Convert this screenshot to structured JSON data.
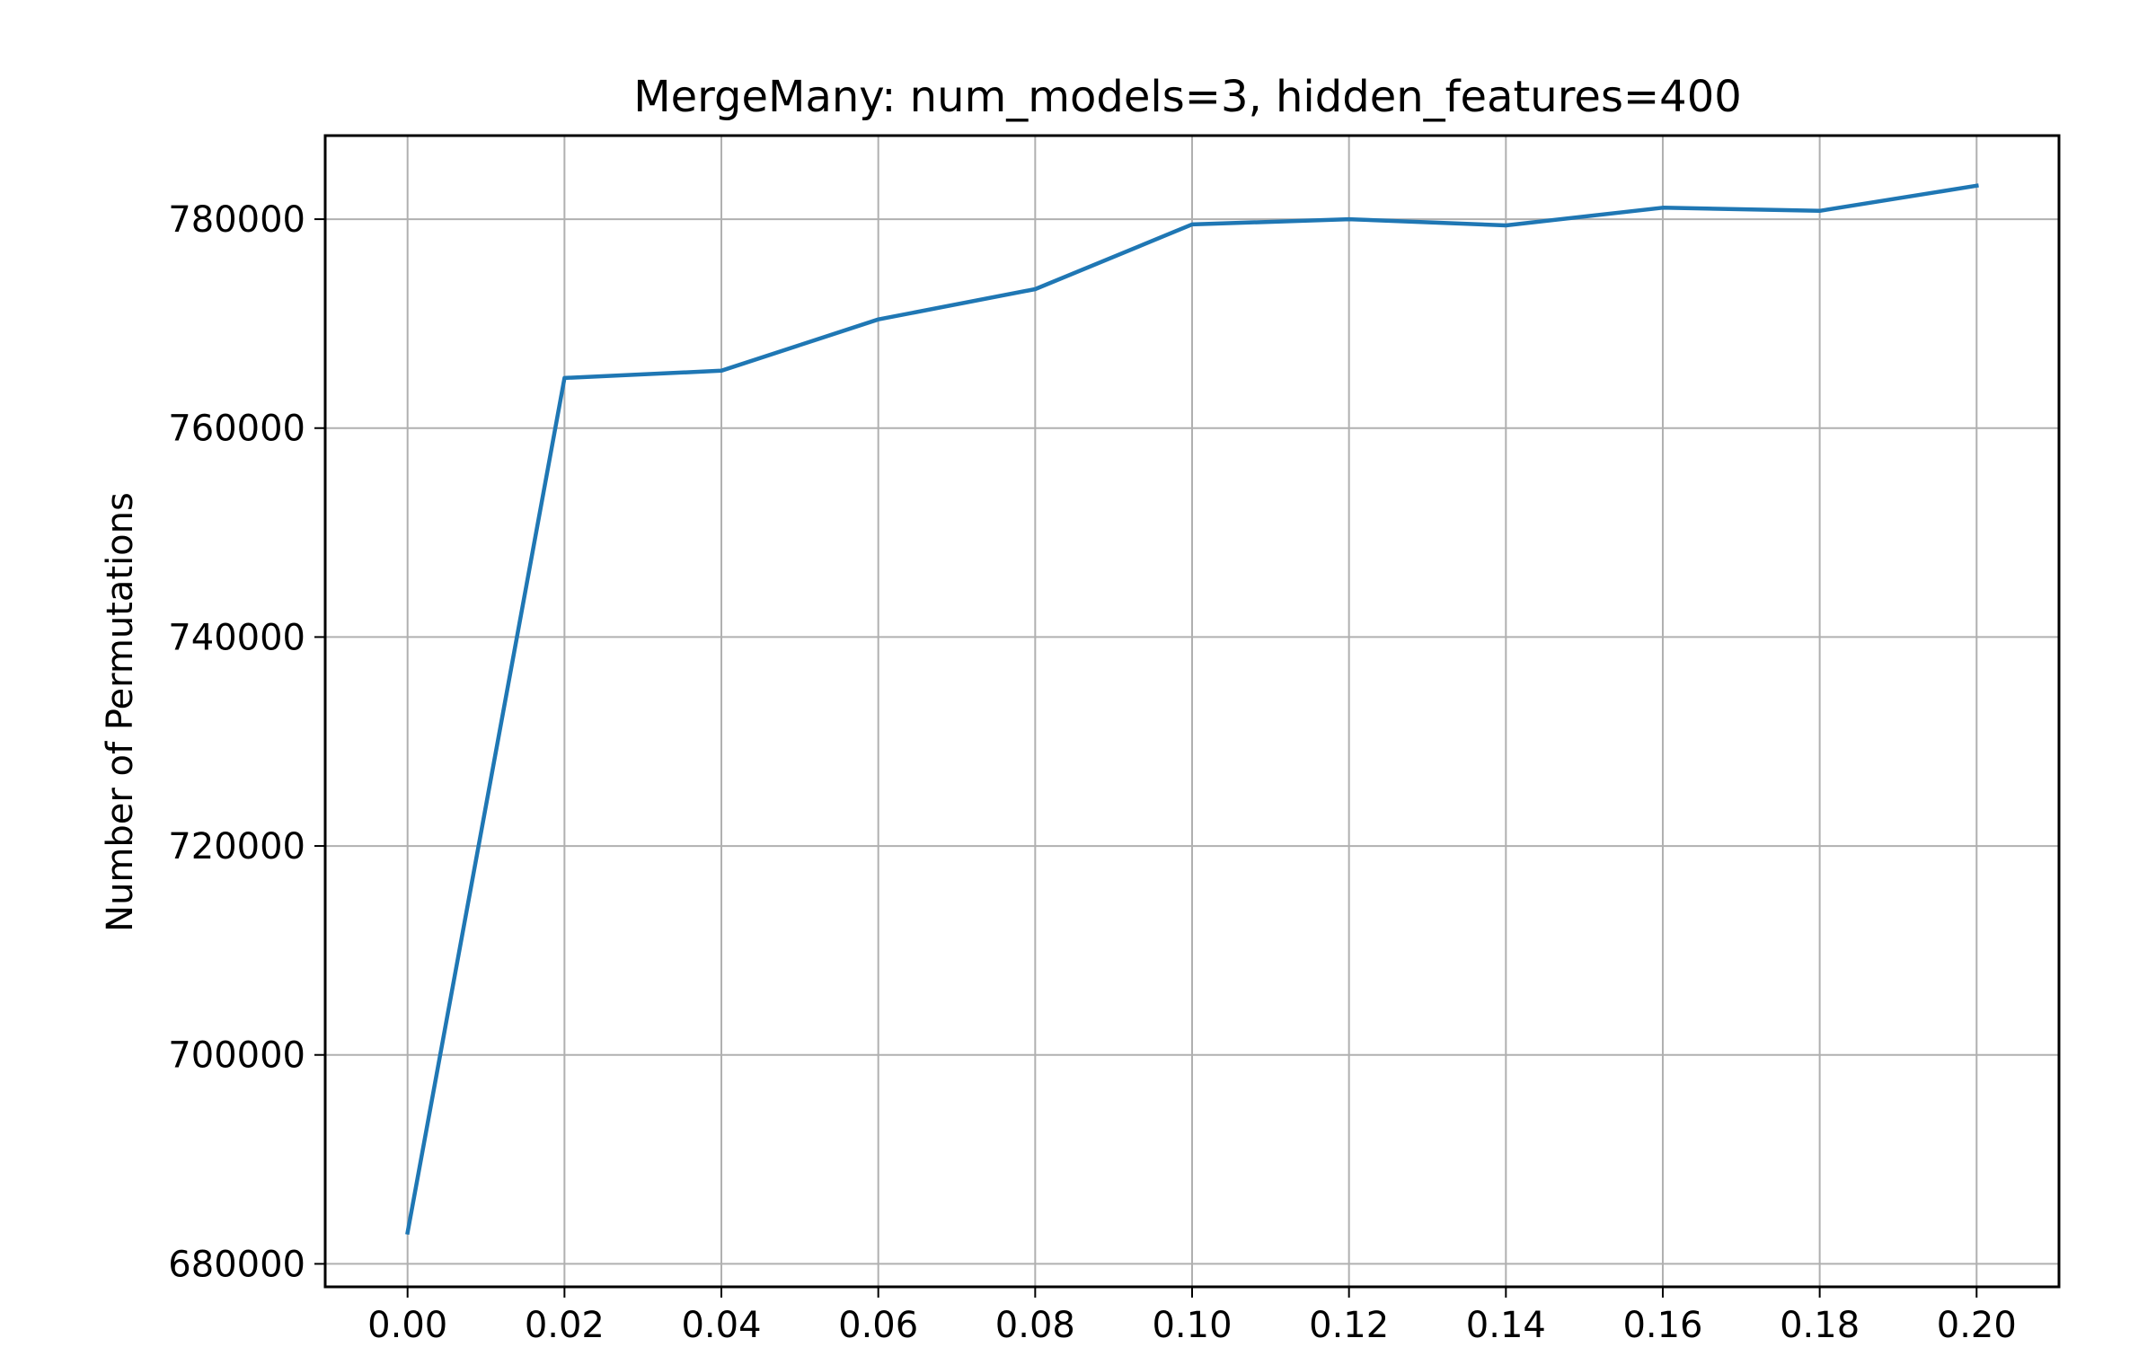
{
  "chart_data": {
    "type": "line",
    "title": "MergeMany: num_models=3, hidden_features=400",
    "xlabel": "",
    "ylabel": "Number of Permutations",
    "xlim": [
      -0.0105,
      0.2105
    ],
    "ylim": [
      677800,
      788000
    ],
    "grid": true,
    "x_ticks": [
      0.0,
      0.02,
      0.04,
      0.06,
      0.08,
      0.1,
      0.12,
      0.14,
      0.16,
      0.18,
      0.2
    ],
    "x_tick_labels": [
      "0.00",
      "0.02",
      "0.04",
      "0.06",
      "0.08",
      "0.10",
      "0.12",
      "0.14",
      "0.16",
      "0.18",
      "0.20"
    ],
    "y_ticks": [
      680000,
      700000,
      720000,
      740000,
      760000,
      780000
    ],
    "y_tick_labels": [
      "680000",
      "700000",
      "720000",
      "740000",
      "760000",
      "780000"
    ],
    "series": [
      {
        "color": "#1f77b4",
        "x": [
          0.0,
          0.02,
          0.04,
          0.06,
          0.08,
          0.1,
          0.12,
          0.14,
          0.16,
          0.18,
          0.2
        ],
        "y": [
          683000,
          764800,
          765500,
          770400,
          773300,
          779500,
          780000,
          779400,
          781100,
          780800,
          783200
        ]
      }
    ]
  }
}
